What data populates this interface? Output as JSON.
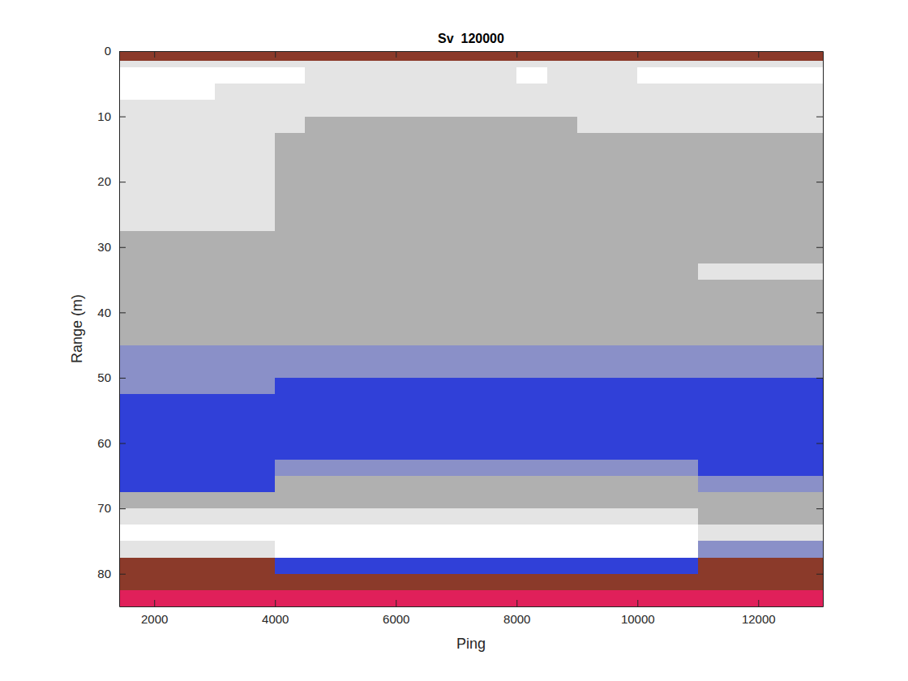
{
  "chart_data": {
    "type": "heatmap",
    "title": "Sv  120000",
    "x_label": "Ping",
    "y_label": "Range (m)",
    "xlim": [
      1420,
      13070
    ],
    "ylim": [
      0,
      85
    ],
    "xticks": [
      2000,
      4000,
      6000,
      8000,
      10000,
      12000
    ],
    "yticks": [
      0,
      10,
      20,
      30,
      40,
      50,
      60,
      70,
      80
    ],
    "x_edges": [
      1420,
      2000,
      2500,
      3000,
      3500,
      4000,
      4500,
      5000,
      5500,
      6000,
      6500,
      7000,
      7500,
      8000,
      8500,
      9000,
      9500,
      10000,
      10500,
      11000,
      11500,
      12000,
      12500,
      13000,
      13070
    ],
    "y_edges": [
      0,
      1.5,
      2.5,
      5,
      7.5,
      10,
      12.5,
      15,
      17.5,
      20,
      22.5,
      25,
      27.5,
      30,
      32.5,
      35,
      37.5,
      40,
      42.5,
      45,
      47.5,
      50,
      52.5,
      55,
      57.5,
      60,
      62.5,
      65,
      67.5,
      70,
      72.5,
      75,
      77.5,
      80,
      82.5,
      85
    ],
    "color_scale": {
      "thresholds": [
        -75,
        -70,
        -66,
        -62,
        -58,
        -54,
        -50,
        -46,
        -42
      ],
      "colors": [
        "#ffffff",
        "#e4e4e4",
        "#b0b0b0",
        "#8a90c8",
        "#3040d8",
        "#00a000",
        "#e8e800",
        "#ff2a2a",
        "#e0205a",
        "#8b3a2a"
      ]
    },
    "cells": [
      [
        -40,
        -40,
        -40,
        -40,
        -40,
        -40,
        -40,
        -40,
        -40,
        -40,
        -40,
        -40,
        -40,
        -40,
        -40,
        -40,
        -40,
        -40,
        -40,
        -40,
        -40,
        -40,
        -40,
        -40
      ],
      [
        -72,
        -72,
        -72,
        -72,
        -72,
        -72,
        -72,
        -72,
        -72,
        -72,
        -72,
        -72,
        -72,
        -72,
        -72,
        -72,
        -72,
        -72,
        -72,
        -72,
        -72,
        -72,
        -72,
        -72
      ],
      [
        -77,
        -77,
        -77,
        -77,
        -76,
        -76,
        -75,
        -75,
        -75,
        -75,
        -75,
        -75,
        -75,
        -76,
        -75,
        -75,
        -75,
        -76,
        -76,
        -76,
        -76,
        -76,
        -76,
        -76
      ],
      [
        -76,
        -76,
        -76,
        -75,
        -74,
        -73,
        -72,
        -72,
        -72,
        -72,
        -72,
        -72,
        -72,
        -72,
        -73,
        -73,
        -73,
        -73,
        -74,
        -74,
        -74,
        -74,
        -74,
        -74
      ],
      [
        -75,
        -75,
        -74,
        -74,
        -73,
        -72,
        -71,
        -71,
        -71,
        -71,
        -71,
        -71,
        -71,
        -71,
        -71,
        -71,
        -72,
        -72,
        -72,
        -72,
        -72,
        -72,
        -72,
        -72
      ],
      [
        -72,
        -73,
        -73,
        -73,
        -72,
        -71,
        -70,
        -70,
        -70,
        -70,
        -70,
        -70,
        -70,
        -70,
        -70,
        -71,
        -71,
        -71,
        -71,
        -71,
        -71,
        -71,
        -71,
        -71
      ],
      [
        -71,
        -71,
        -71,
        -71,
        -71,
        -70,
        -70,
        -70,
        -70,
        -70,
        -70,
        -70,
        -70,
        -70,
        -70,
        -70,
        -70,
        -70,
        -70,
        -70,
        -70,
        -70,
        -70,
        -70
      ],
      [
        -71,
        -71,
        -71,
        -72,
        -71,
        -70,
        -70,
        -70,
        -70,
        -70,
        -70,
        -70,
        -70,
        -70,
        -70,
        -70,
        -70,
        -70,
        -70,
        -70,
        -70,
        -70,
        -70,
        -70
      ],
      [
        -72,
        -72,
        -72,
        -72,
        -71,
        -70,
        -70,
        -70,
        -70,
        -70,
        -70,
        -70,
        -70,
        -70,
        -70,
        -70,
        -70,
        -70,
        -70,
        -70,
        -70,
        -70,
        -70,
        -70
      ],
      [
        -72,
        -72,
        -72,
        -72,
        -71,
        -70,
        -70,
        -69,
        -69,
        -69,
        -69,
        -69,
        -69,
        -69,
        -69,
        -69,
        -70,
        -70,
        -70,
        -70,
        -70,
        -70,
        -70,
        -70
      ],
      [
        -71,
        -71,
        -71,
        -71,
        -71,
        -70,
        -69,
        -69,
        -69,
        -69,
        -69,
        -69,
        -69,
        -69,
        -69,
        -69,
        -69,
        -70,
        -70,
        -69,
        -69,
        -69,
        -69,
        -69
      ],
      [
        -71,
        -71,
        -71,
        -71,
        -71,
        -70,
        -70,
        -70,
        -70,
        -70,
        -70,
        -70,
        -70,
        -70,
        -70,
        -70,
        -70,
        -70,
        -70,
        -70,
        -70,
        -70,
        -70,
        -70
      ],
      [
        -70,
        -70,
        -70,
        -70,
        -70,
        -70,
        -70,
        -70,
        -70,
        -70,
        -70,
        -70,
        -70,
        -70,
        -70,
        -70,
        -70,
        -70,
        -70,
        -70,
        -70,
        -70,
        -70,
        -70
      ],
      [
        -69,
        -69,
        -69,
        -69,
        -69,
        -70,
        -70,
        -70,
        -70,
        -70,
        -70,
        -70,
        -70,
        -70,
        -70,
        -70,
        -70,
        -70,
        -70,
        -70,
        -70,
        -70,
        -70,
        -70
      ],
      [
        -69,
        -69,
        -69,
        -69,
        -69,
        -70,
        -70,
        -70,
        -70,
        -70,
        -70,
        -70,
        -70,
        -70,
        -70,
        -70,
        -70,
        -70,
        -70,
        -71,
        -71,
        -71,
        -71,
        -71
      ],
      [
        -68,
        -68,
        -68,
        -68,
        -68,
        -70,
        -70,
        -70,
        -70,
        -70,
        -70,
        -70,
        -70,
        -70,
        -70,
        -70,
        -70,
        -70,
        -70,
        -70,
        -70,
        -70,
        -70,
        -70
      ],
      [
        -68,
        -68,
        -68,
        -68,
        -68,
        -69,
        -69,
        -69,
        -69,
        -69,
        -69,
        -69,
        -69,
        -69,
        -69,
        -69,
        -69,
        -69,
        -69,
        -69,
        -69,
        -69,
        -69,
        -69
      ],
      [
        -68,
        -68,
        -68,
        -68,
        -68,
        -68,
        -68,
        -68,
        -68,
        -68,
        -68,
        -68,
        -68,
        -68,
        -68,
        -68,
        -68,
        -68,
        -68,
        -68,
        -68,
        -68,
        -68,
        -68
      ],
      [
        -67,
        -67,
        -67,
        -67,
        -67,
        -67,
        -67,
        -67,
        -67,
        -67,
        -67,
        -67,
        -67,
        -67,
        -67,
        -67,
        -67,
        -67,
        -67,
        -67,
        -67,
        -67,
        -67,
        -67
      ],
      [
        -66,
        -66,
        -66,
        -66,
        -66,
        -65,
        -65,
        -65,
        -65,
        -65,
        -65,
        -65,
        -65,
        -65,
        -65,
        -65,
        -65,
        -65,
        -65,
        -65,
        -65,
        -65,
        -65,
        -65
      ],
      [
        -64,
        -64,
        -64,
        -64,
        -64,
        -63,
        -63,
        -63,
        -63,
        -63,
        -63,
        -63,
        -63,
        -63,
        -63,
        -63,
        -63,
        -63,
        -63,
        -63,
        -63,
        -63,
        -63,
        -63
      ],
      [
        -63,
        -63,
        -63,
        -63,
        -63,
        -62,
        -62,
        -62,
        -62,
        -62,
        -62,
        -62,
        -62,
        -62,
        -62,
        -62,
        -62,
        -62,
        -62,
        -62,
        -62,
        -62,
        -62,
        -62
      ],
      [
        -62,
        -62,
        -62,
        -62,
        -62,
        -61,
        -61,
        -61,
        -61,
        -61,
        -61,
        -61,
        -61,
        -61,
        -61,
        -61,
        -61,
        -61,
        -61,
        -61,
        -61,
        -61,
        -61,
        -61
      ],
      [
        -61,
        -61,
        -61,
        -61,
        -61,
        -61,
        -61,
        -61,
        -61,
        -61,
        -61,
        -61,
        -61,
        -61,
        -61,
        -61,
        -61,
        -61,
        -61,
        -60,
        -60,
        -60,
        -60,
        -60
      ],
      [
        -61,
        -61,
        -61,
        -61,
        -61,
        -60,
        -60,
        -60,
        -60,
        -60,
        -60,
        -60,
        -60,
        -60,
        -60,
        -60,
        -60,
        -60,
        -60,
        -60,
        -60,
        -60,
        -60,
        -60
      ],
      [
        -60,
        -60,
        -60,
        -60,
        -60,
        -61,
        -61,
        -61,
        -61,
        -61,
        -61,
        -61,
        -61,
        -61,
        -61,
        -61,
        -61,
        -61,
        -61,
        -60,
        -60,
        -60,
        -60,
        -60
      ],
      [
        -60,
        -60,
        -60,
        -60,
        -60,
        -63,
        -63,
        -63,
        -63,
        -63,
        -63,
        -63,
        -63,
        -63,
        -63,
        -63,
        -63,
        -63,
        -63,
        -62,
        -62,
        -62,
        -62,
        -62
      ],
      [
        -61,
        -61,
        -61,
        -61,
        -61,
        -67,
        -67,
        -67,
        -67,
        -67,
        -67,
        -67,
        -67,
        -67,
        -67,
        -67,
        -67,
        -67,
        -67,
        -66,
        -66,
        -66,
        -66,
        -66
      ],
      [
        -68,
        -68,
        -68,
        -68,
        -68,
        -70,
        -70,
        -70,
        -70,
        -70,
        -70,
        -70,
        -70,
        -70,
        -70,
        -70,
        -70,
        -70,
        -70,
        -68,
        -68,
        -68,
        -68,
        -68
      ],
      [
        -72,
        -72,
        -72,
        -72,
        -72,
        -72,
        -72,
        -72,
        -72,
        -72,
        -72,
        -72,
        -72,
        -72,
        -72,
        -72,
        -72,
        -72,
        -72,
        -70,
        -70,
        -70,
        -70,
        -70
      ],
      [
        -76,
        -76,
        -76,
        -76,
        -76,
        -77,
        -77,
        -77,
        -77,
        -77,
        -77,
        -77,
        -77,
        -77,
        -77,
        -77,
        -77,
        -77,
        -77,
        -74,
        -74,
        -74,
        -74,
        -74
      ],
      [
        -74,
        -74,
        -74,
        -74,
        -74,
        -78,
        -78,
        -78,
        -78,
        -78,
        -78,
        -78,
        -78,
        -78,
        -78,
        -78,
        -78,
        -78,
        -78,
        -66,
        -66,
        -66,
        -66,
        -66
      ],
      [
        -42,
        -42,
        -42,
        -42,
        -42,
        -60,
        -60,
        -60,
        -60,
        -60,
        -60,
        -60,
        -60,
        -60,
        -60,
        -60,
        -60,
        -60,
        -60,
        -42,
        -42,
        -42,
        -42,
        -42
      ],
      [
        -40,
        -40,
        -40,
        -40,
        -40,
        -40,
        -40,
        -40,
        -40,
        -40,
        -40,
        -40,
        -40,
        -40,
        -40,
        -40,
        -40,
        -40,
        -40,
        -40,
        -40,
        -40,
        -40,
        -40
      ],
      [
        -44,
        -44,
        -44,
        -44,
        -44,
        -44,
        -44,
        -44,
        -44,
        -44,
        -44,
        -44,
        -44,
        -44,
        -44,
        -44,
        -44,
        -44,
        -44,
        -44,
        -44,
        -44,
        -44,
        -44
      ]
    ]
  }
}
